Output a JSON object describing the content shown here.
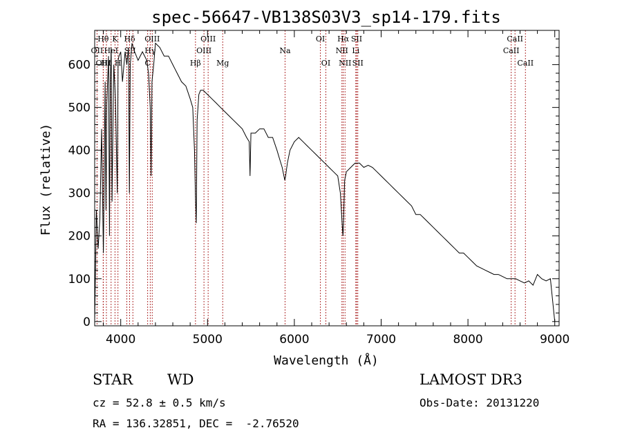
{
  "chart_data": {
    "type": "line",
    "title": "spec-56647-VB138S03V3_sp14-179.fits",
    "xlabel": "Wavelength (Å)",
    "ylabel": "Flux (relative)",
    "xlim": [
      3700,
      9050
    ],
    "ylim": [
      -10,
      680
    ],
    "xticks": [
      4000,
      5000,
      6000,
      7000,
      8000,
      9000
    ],
    "yticks": [
      0,
      100,
      200,
      300,
      400,
      500,
      600
    ],
    "grid": false,
    "series": [
      {
        "x": [
          3700,
          3720,
          3740,
          3760,
          3780,
          3800,
          3820,
          3830,
          3840,
          3860,
          3870,
          3880,
          3890,
          3900,
          3920,
          3940,
          3960,
          3970,
          3980,
          4000,
          4020,
          4050,
          4070,
          4090,
          4100,
          4110,
          4130,
          4160,
          4200,
          4250,
          4300,
          4320,
          4340,
          4350,
          4360,
          4380,
          4400,
          4450,
          4500,
          4550,
          4600,
          4650,
          4700,
          4750,
          4800,
          4830,
          4850,
          4860,
          4870,
          4880,
          4900,
          4920,
          4950,
          5000,
          5050,
          5100,
          5150,
          5200,
          5250,
          5300,
          5350,
          5400,
          5450,
          5480,
          5490,
          5500,
          5550,
          5600,
          5650,
          5700,
          5750,
          5800,
          5830,
          5860,
          5880,
          5890,
          5900,
          5920,
          5950,
          6000,
          6050,
          6100,
          6150,
          6200,
          6250,
          6300,
          6350,
          6400,
          6450,
          6500,
          6530,
          6550,
          6560,
          6563,
          6570,
          6580,
          6600,
          6650,
          6700,
          6750,
          6800,
          6850,
          6900,
          6950,
          7000,
          7050,
          7100,
          7150,
          7200,
          7250,
          7300,
          7350,
          7400,
          7450,
          7500,
          7550,
          7600,
          7650,
          7700,
          7750,
          7800,
          7850,
          7900,
          7950,
          8000,
          8050,
          8100,
          8150,
          8200,
          8250,
          8300,
          8350,
          8400,
          8450,
          8500,
          8550,
          8600,
          8650,
          8700,
          8750,
          8800,
          8850,
          8900,
          8950,
          9000
        ],
        "values": [
          0,
          260,
          170,
          240,
          450,
          160,
          560,
          260,
          510,
          620,
          200,
          560,
          640,
          280,
          600,
          520,
          300,
          610,
          620,
          630,
          560,
          630,
          600,
          640,
          300,
          600,
          650,
          630,
          610,
          630,
          610,
          580,
          500,
          340,
          560,
          600,
          650,
          640,
          620,
          620,
          600,
          580,
          560,
          550,
          520,
          500,
          400,
          300,
          230,
          470,
          530,
          540,
          540,
          530,
          520,
          510,
          500,
          490,
          480,
          470,
          460,
          450,
          430,
          420,
          340,
          440,
          440,
          450,
          450,
          430,
          430,
          400,
          380,
          360,
          340,
          330,
          340,
          370,
          400,
          420,
          430,
          420,
          410,
          400,
          390,
          380,
          370,
          360,
          350,
          340,
          300,
          230,
          200,
          210,
          260,
          330,
          350,
          360,
          370,
          370,
          360,
          365,
          360,
          350,
          340,
          330,
          320,
          310,
          300,
          290,
          280,
          270,
          250,
          250,
          240,
          230,
          220,
          210,
          200,
          190,
          180,
          170,
          160,
          160,
          150,
          140,
          130,
          125,
          120,
          115,
          110,
          110,
          105,
          100,
          100,
          100,
          95,
          90,
          95,
          85,
          110,
          100,
          95,
          100,
          0
        ]
      }
    ],
    "spectral_lines": [
      {
        "name": "Hθ",
        "wl": 3798,
        "row": 1
      },
      {
        "name": "OII",
        "wl": 3727,
        "row": 2
      },
      {
        "name": "OIII",
        "wl": 3800,
        "row": 3
      },
      {
        "name": "Hη",
        "wl": 3835,
        "row": 3
      },
      {
        "name": "HeI",
        "wl": 3889,
        "row": 2
      },
      {
        "name": "K",
        "wl": 3934,
        "row": 1
      },
      {
        "name": "H",
        "wl": 3968,
        "row": 3
      },
      {
        "name": "S",
        "wl": 4070,
        "row": 2
      },
      {
        "name": "Hδ",
        "wl": 4102,
        "row": 1
      },
      {
        "name": "II",
        "wl": 4140,
        "row": 2
      },
      {
        "name": "OIII",
        "wl": 4363,
        "row": 1
      },
      {
        "name": "Hγ",
        "wl": 4340,
        "row": 2
      },
      {
        "name": "C",
        "wl": 4310,
        "row": 3
      },
      {
        "name": "Hβ",
        "wl": 4861,
        "row": 3
      },
      {
        "name": "OIII",
        "wl": 4959,
        "row": 2
      },
      {
        "name": "OIII",
        "wl": 5007,
        "row": 1
      },
      {
        "name": "Mg",
        "wl": 5175,
        "row": 3
      },
      {
        "name": "Na",
        "wl": 5893,
        "row": 2
      },
      {
        "name": "OI",
        "wl": 6300,
        "row": 1
      },
      {
        "name": "OI",
        "wl": 6363,
        "row": 3
      },
      {
        "name": "Hα",
        "wl": 6563,
        "row": 1
      },
      {
        "name": "NII",
        "wl": 6548,
        "row": 2
      },
      {
        "name": "NII",
        "wl": 6584,
        "row": 3
      },
      {
        "name": "SII",
        "wl": 6717,
        "row": 1
      },
      {
        "name": "Li",
        "wl": 6708,
        "row": 2
      },
      {
        "name": "SII",
        "wl": 6731,
        "row": 3
      },
      {
        "name": "CaII",
        "wl": 8542,
        "row": 1
      },
      {
        "name": "CaII",
        "wl": 8498,
        "row": 2
      },
      {
        "name": "CaII",
        "wl": 8662,
        "row": 3
      }
    ]
  },
  "info": {
    "class_label": "STAR",
    "subclass_label": "WD",
    "survey": "LAMOST DR3",
    "cz": "cz = 52.8 ± 0.5 km/s",
    "obs_date": "Obs-Date: 20131220",
    "coords": "RA = 136.32851, DEC =  -2.76520"
  },
  "colors": {
    "spectrum": "#000000",
    "line_marker": "#b03030",
    "axis": "#000000"
  }
}
